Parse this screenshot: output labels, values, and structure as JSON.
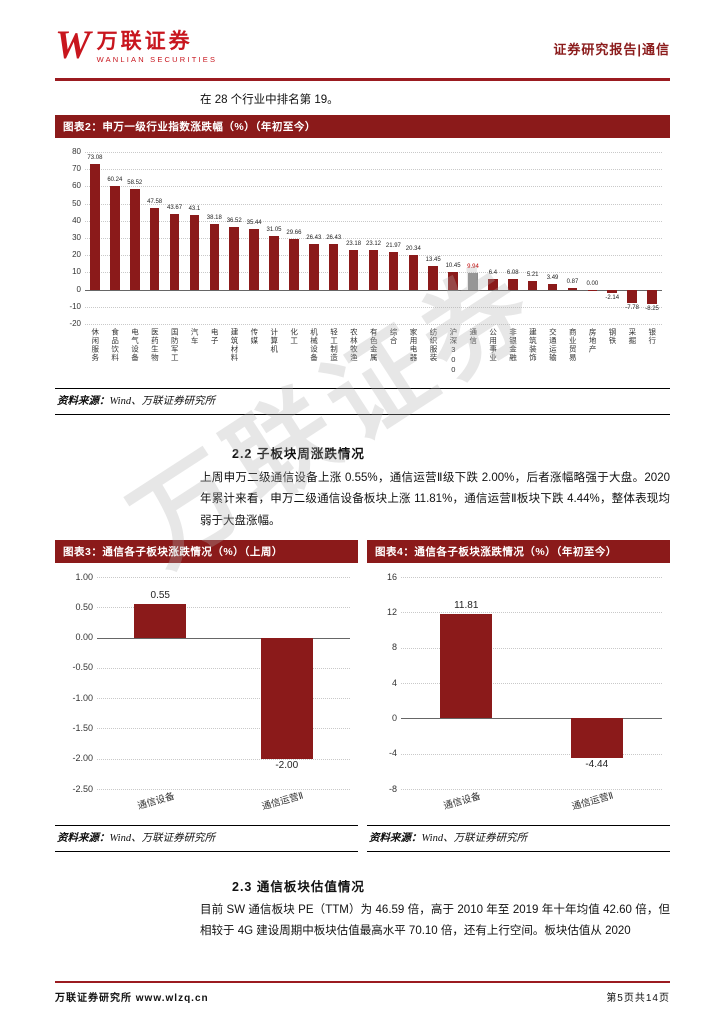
{
  "brand": {
    "logo_letter": "W",
    "name_cn": "万联证券",
    "name_en": "WANLIAN SECURITIES"
  },
  "header": {
    "right_text": "证券研究报告|通信"
  },
  "intro": {
    "text": "在 28 个行业中排名第 19。"
  },
  "figures": {
    "source_label": "资料来源：",
    "source_value": "Wind、万联证券研究所"
  },
  "sections": {
    "s22": {
      "heading": "2.2 子板块周涨跌情况",
      "body": "上周申万二级通信设备上涨 0.55%，通信运营Ⅱ级下跌 2.00%，后者涨幅略强于大盘。2020 年累计来看，申万二级通信设备板块上涨 11.81%，通信运营Ⅱ板块下跌 4.44%，整体表现均弱于大盘涨幅。"
    },
    "s23": {
      "heading": "2.3 通信板块估值情况",
      "body": "目前 SW 通信板块 PE（TTM）为 46.59 倍，高于 2010 年至 2019 年十年均值 42.60 倍，但相较于 4G 建设周期中板块估值最高水平 70.10 倍，还有上行空间。板块估值从 2020"
    }
  },
  "footer": {
    "left": "万联证券研究所 www.wlzq.cn",
    "right": "第5页共14页"
  },
  "watermark": "万联证券",
  "colors": {
    "bar_red": "#8b1a1a",
    "highlight_gray": "#8c8c8c",
    "highlight_label": "#c00000"
  },
  "chart_data": [
    {
      "id": "chart2",
      "type": "bar",
      "title": "图表2：申万一级行业指数涨跌幅（%）（年初至今）",
      "categories": [
        "休闲服务",
        "食品饮料",
        "电气设备",
        "医药生物",
        "国防军工",
        "汽车",
        "电子",
        "建筑材料",
        "传媒",
        "计算机",
        "化工",
        "机械设备",
        "轻工制造",
        "农林牧渔",
        "有色金属",
        "综合",
        "家用电器",
        "纺织服装",
        "沪深300",
        "通信",
        "公用事业",
        "非银金融",
        "建筑装饰",
        "交通运输",
        "商业贸易",
        "房地产",
        "钢铁",
        "采掘",
        "银行"
      ],
      "values": [
        73.08,
        60.24,
        58.52,
        47.58,
        43.67,
        43.1,
        38.18,
        36.52,
        35.44,
        31.05,
        29.66,
        26.43,
        26.43,
        23.18,
        23.12,
        21.97,
        20.34,
        13.45,
        10.45,
        9.94,
        6.4,
        6.08,
        5.21,
        3.49,
        0.87,
        0.0,
        -2.14,
        -7.78,
        -8.25
      ],
      "value_labels": [
        "73.08",
        "60.24",
        "58.52",
        "47.58",
        "43.67",
        "43.1",
        "38.18",
        "36.52",
        "35.44",
        "31.05",
        "29.66",
        "26.43",
        "26.43",
        "23.18",
        "23.12",
        "21.97",
        "20.34",
        "13.45",
        "10.45",
        "9.94",
        "6.4",
        "6.08",
        "5.21",
        "3.49",
        "0.87",
        "0.00",
        "-2.14",
        "-7.78",
        "-8.25"
      ],
      "highlight_index": 19,
      "ylim": [
        -20,
        80
      ],
      "yticks": [
        80,
        70,
        60,
        50,
        40,
        30,
        20,
        10,
        0,
        -10,
        -20
      ],
      "ytick_labels": [
        "80",
        "70",
        "60",
        "50",
        "40",
        "30",
        "20",
        "10",
        "0",
        "-10",
        "-20"
      ],
      "xlabel": "",
      "ylabel": "",
      "grid": true,
      "legend": false
    },
    {
      "id": "chart3",
      "type": "bar",
      "title": "图表3：通信各子板块涨跌情况（%）（上周）",
      "categories": [
        "通信设备",
        "通信运营Ⅱ"
      ],
      "values": [
        0.55,
        -2.0
      ],
      "value_labels": [
        "0.55",
        "-2.00"
      ],
      "highlight_index": -1,
      "ylim": [
        -2.5,
        1.0
      ],
      "yticks": [
        1.0,
        0.5,
        0.0,
        -0.5,
        -1.0,
        -1.5,
        -2.0,
        -2.5
      ],
      "ytick_labels": [
        "1.00",
        "0.50",
        "0.00",
        "-0.50",
        "-1.00",
        "-1.50",
        "-2.00",
        "-2.50"
      ],
      "xlabel": "",
      "ylabel": "",
      "grid": true,
      "legend": false
    },
    {
      "id": "chart4",
      "type": "bar",
      "title": "图表4：通信各子板块涨跌情况（%）（年初至今）",
      "categories": [
        "通信设备",
        "通信运营Ⅱ"
      ],
      "values": [
        11.81,
        -4.44
      ],
      "value_labels": [
        "11.81",
        "-4.44"
      ],
      "highlight_index": -1,
      "ylim": [
        -8,
        16
      ],
      "yticks": [
        16,
        12,
        8,
        4,
        0,
        -4,
        -8
      ],
      "ytick_labels": [
        "16",
        "12",
        "8",
        "4",
        "0",
        "-4",
        "-8"
      ],
      "xlabel": "",
      "ylabel": "",
      "grid": true,
      "legend": false
    }
  ]
}
